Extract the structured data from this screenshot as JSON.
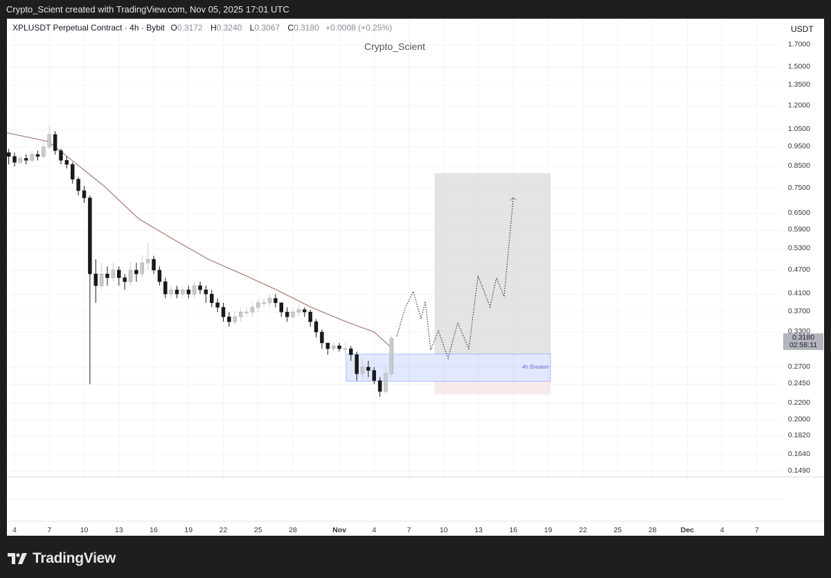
{
  "credit": "Crypto_Scient created with TradingView.com, Nov 05, 2025 17:01 UTC",
  "legend": {
    "symbol": "XPLUSDT Perpetual Contract · 4h · Bybit",
    "open_label": "O",
    "open": "0.3172",
    "high_label": "H",
    "high": "0.3240",
    "low_label": "L",
    "low": "0.3067",
    "close_label": "C",
    "close": "0.3180",
    "change": "+0.0008 (+0.25%)"
  },
  "watermark": "Crypto_Scient",
  "brand": "TradingView",
  "chart_data": {
    "type": "candlestick",
    "title": "XPLUSDT Perpetual Contract · 4h · Bybit",
    "yscale": "log",
    "ylabel": "USDT",
    "ylim": [
      0.149,
      1.7
    ],
    "grid": true,
    "y_ticks": [
      "1.7000",
      "1.5000",
      "1.3500",
      "1.2000",
      "1.0500",
      "0.9500",
      "0.8500",
      "0.7500",
      "0.6500",
      "0.5900",
      "0.5300",
      "0.4700",
      "0.4100",
      "0.3700",
      "0.3300",
      "0.2700",
      "0.2450",
      "0.2200",
      "0.2000",
      "0.1820",
      "0.1640",
      "0.1490"
    ],
    "x_ticks": [
      {
        "label": "4",
        "date": "2025-10-04"
      },
      {
        "label": "7",
        "date": "2025-10-07"
      },
      {
        "label": "10",
        "date": "2025-10-10"
      },
      {
        "label": "13",
        "date": "2025-10-13"
      },
      {
        "label": "16",
        "date": "2025-10-16"
      },
      {
        "label": "19",
        "date": "2025-10-19"
      },
      {
        "label": "22",
        "date": "2025-10-22"
      },
      {
        "label": "25",
        "date": "2025-10-25"
      },
      {
        "label": "28",
        "date": "2025-10-28"
      },
      {
        "label": "Nov",
        "date": "2025-11-01",
        "major": true
      },
      {
        "label": "4",
        "date": "2025-11-04"
      },
      {
        "label": "7",
        "date": "2025-11-07"
      },
      {
        "label": "10",
        "date": "2025-11-10"
      },
      {
        "label": "13",
        "date": "2025-11-13"
      },
      {
        "label": "16",
        "date": "2025-11-16"
      },
      {
        "label": "19",
        "date": "2025-11-19"
      },
      {
        "label": "22",
        "date": "2025-11-22"
      },
      {
        "label": "25",
        "date": "2025-11-25"
      },
      {
        "label": "28",
        "date": "2025-11-28"
      },
      {
        "label": "Dec",
        "date": "2025-12-01",
        "major": true
      },
      {
        "label": "4",
        "date": "2025-12-04"
      },
      {
        "label": "7",
        "date": "2025-12-07"
      }
    ],
    "candles": [
      [
        "2025-10-03T12",
        0.92,
        0.94,
        0.86,
        0.9
      ],
      [
        "2025-10-04T00",
        0.9,
        0.92,
        0.85,
        0.87
      ],
      [
        "2025-10-04T12",
        0.87,
        0.91,
        0.86,
        0.89
      ],
      [
        "2025-10-05T00",
        0.89,
        0.91,
        0.86,
        0.88
      ],
      [
        "2025-10-05T12",
        0.88,
        0.93,
        0.87,
        0.91
      ],
      [
        "2025-10-06T00",
        0.91,
        0.93,
        0.88,
        0.9
      ],
      [
        "2025-10-06T12",
        0.9,
        0.98,
        0.89,
        0.95
      ],
      [
        "2025-10-07T00",
        0.95,
        1.07,
        0.94,
        1.02
      ],
      [
        "2025-10-07T12",
        1.02,
        1.04,
        0.91,
        0.93
      ],
      [
        "2025-10-08T00",
        0.93,
        0.94,
        0.86,
        0.88
      ],
      [
        "2025-10-08T12",
        0.88,
        0.9,
        0.84,
        0.86
      ],
      [
        "2025-10-09T00",
        0.86,
        0.87,
        0.77,
        0.79
      ],
      [
        "2025-10-09T12",
        0.79,
        0.8,
        0.72,
        0.74
      ],
      [
        "2025-10-10T00",
        0.74,
        0.76,
        0.69,
        0.71
      ],
      [
        "2025-10-10T12",
        0.71,
        0.72,
        0.245,
        0.46
      ],
      [
        "2025-10-11T00",
        0.46,
        0.5,
        0.39,
        0.43
      ],
      [
        "2025-10-11T12",
        0.43,
        0.49,
        0.42,
        0.46
      ],
      [
        "2025-10-12T00",
        0.46,
        0.48,
        0.43,
        0.45
      ],
      [
        "2025-10-12T12",
        0.45,
        0.49,
        0.44,
        0.47
      ],
      [
        "2025-10-13T00",
        0.47,
        0.48,
        0.43,
        0.45
      ],
      [
        "2025-10-13T12",
        0.45,
        0.46,
        0.42,
        0.44
      ],
      [
        "2025-10-14T00",
        0.44,
        0.49,
        0.43,
        0.47
      ],
      [
        "2025-10-14T12",
        0.47,
        0.49,
        0.44,
        0.46
      ],
      [
        "2025-10-15T00",
        0.46,
        0.51,
        0.45,
        0.49
      ],
      [
        "2025-10-15T12",
        0.49,
        0.55,
        0.47,
        0.5
      ],
      [
        "2025-10-16T00",
        0.5,
        0.51,
        0.46,
        0.47
      ],
      [
        "2025-10-16T12",
        0.47,
        0.48,
        0.43,
        0.44
      ],
      [
        "2025-10-17T00",
        0.44,
        0.45,
        0.4,
        0.41
      ],
      [
        "2025-10-17T12",
        0.41,
        0.43,
        0.4,
        0.42
      ],
      [
        "2025-10-18T00",
        0.42,
        0.43,
        0.4,
        0.41
      ],
      [
        "2025-10-18T12",
        0.41,
        0.43,
        0.4,
        0.42
      ],
      [
        "2025-10-19T00",
        0.42,
        0.43,
        0.4,
        0.41
      ],
      [
        "2025-10-19T12",
        0.41,
        0.44,
        0.4,
        0.43
      ],
      [
        "2025-10-20T00",
        0.43,
        0.44,
        0.41,
        0.42
      ],
      [
        "2025-10-20T12",
        0.42,
        0.43,
        0.39,
        0.41
      ],
      [
        "2025-10-21T00",
        0.41,
        0.42,
        0.38,
        0.39
      ],
      [
        "2025-10-21T12",
        0.39,
        0.4,
        0.37,
        0.38
      ],
      [
        "2025-10-22T00",
        0.38,
        0.39,
        0.35,
        0.36
      ],
      [
        "2025-10-22T12",
        0.36,
        0.37,
        0.34,
        0.35
      ],
      [
        "2025-10-23T00",
        0.35,
        0.37,
        0.345,
        0.36
      ],
      [
        "2025-10-23T12",
        0.36,
        0.38,
        0.35,
        0.37
      ],
      [
        "2025-10-24T00",
        0.37,
        0.38,
        0.36,
        0.37
      ],
      [
        "2025-10-24T12",
        0.37,
        0.39,
        0.36,
        0.38
      ],
      [
        "2025-10-25T00",
        0.38,
        0.4,
        0.37,
        0.39
      ],
      [
        "2025-10-25T12",
        0.39,
        0.4,
        0.38,
        0.39
      ],
      [
        "2025-10-26T00",
        0.39,
        0.41,
        0.38,
        0.4
      ],
      [
        "2025-10-26T12",
        0.4,
        0.41,
        0.38,
        0.39
      ],
      [
        "2025-10-27T00",
        0.39,
        0.39,
        0.36,
        0.37
      ],
      [
        "2025-10-27T12",
        0.37,
        0.38,
        0.35,
        0.36
      ],
      [
        "2025-10-28T00",
        0.36,
        0.38,
        0.355,
        0.37
      ],
      [
        "2025-10-28T12",
        0.37,
        0.385,
        0.36,
        0.375
      ],
      [
        "2025-10-29T00",
        0.375,
        0.38,
        0.36,
        0.37
      ],
      [
        "2025-10-29T12",
        0.37,
        0.375,
        0.34,
        0.35
      ],
      [
        "2025-10-30T00",
        0.35,
        0.355,
        0.32,
        0.33
      ],
      [
        "2025-10-30T12",
        0.33,
        0.335,
        0.3,
        0.31
      ],
      [
        "2025-10-31T00",
        0.31,
        0.31,
        0.29,
        0.3
      ],
      [
        "2025-10-31T12",
        0.3,
        0.31,
        0.295,
        0.305
      ],
      [
        "2025-11-01T00",
        0.305,
        0.31,
        0.295,
        0.3
      ],
      [
        "2025-11-01T12",
        0.3,
        0.31,
        0.29,
        0.3
      ],
      [
        "2025-11-02T00",
        0.3,
        0.305,
        0.28,
        0.29
      ],
      [
        "2025-11-02T12",
        0.29,
        0.295,
        0.25,
        0.26
      ],
      [
        "2025-11-03T00",
        0.26,
        0.285,
        0.255,
        0.27
      ],
      [
        "2025-11-03T12",
        0.27,
        0.28,
        0.255,
        0.265
      ],
      [
        "2025-11-04T00",
        0.265,
        0.27,
        0.245,
        0.25
      ],
      [
        "2025-11-04T12",
        0.25,
        0.255,
        0.228,
        0.235
      ],
      [
        "2025-11-05T00",
        0.235,
        0.27,
        0.232,
        0.26
      ],
      [
        "2025-11-05T12",
        0.26,
        0.324,
        0.255,
        0.318
      ]
    ],
    "moving_average": [
      [
        "2025-10-03T08",
        1.03
      ],
      [
        "2025-10-06T22",
        0.98
      ],
      [
        "2025-10-11T17",
        0.76
      ],
      [
        "2025-10-14T17",
        0.63
      ],
      [
        "2025-10-17T17",
        0.56
      ],
      [
        "2025-10-20T17",
        0.5
      ],
      [
        "2025-10-23T14",
        0.46
      ],
      [
        "2025-10-26T14",
        0.42
      ],
      [
        "2025-10-29T14",
        0.38
      ],
      [
        "2025-11-01T14",
        0.35
      ],
      [
        "2025-11-04T00",
        0.33
      ],
      [
        "2025-11-05T14",
        0.3
      ]
    ],
    "projection_path": [
      [
        "2025-11-05T23",
        0.322
      ],
      [
        "2025-11-06T16",
        0.378
      ],
      [
        "2025-11-07T09",
        0.416
      ],
      [
        "2025-11-08T01",
        0.356
      ],
      [
        "2025-11-08T10",
        0.393
      ],
      [
        "2025-11-08T21",
        0.298
      ],
      [
        "2025-11-09T13",
        0.332
      ],
      [
        "2025-11-10T09",
        0.284
      ],
      [
        "2025-11-11T05",
        0.348
      ],
      [
        "2025-11-12T04",
        0.3
      ],
      [
        "2025-11-12T23",
        0.455
      ],
      [
        "2025-11-14T00",
        0.381
      ],
      [
        "2025-11-14T13",
        0.45
      ],
      [
        "2025-11-15T05",
        0.404
      ],
      [
        "2025-11-16T00",
        0.712
      ]
    ],
    "breaker_zone": {
      "label": "4h Breaker",
      "from": "2025-11-01T14",
      "to": "2025-11-19T05",
      "top": 0.291,
      "bottom": 0.249,
      "color": "#6c8cff"
    },
    "position": {
      "from": "2025-11-09T05",
      "to": "2025-11-19T05",
      "target": 0.818,
      "entry": 0.291,
      "stop": 0.231
    },
    "last_price": {
      "value": "0.3180",
      "countdown": "02:58:11"
    },
    "colors": {
      "up": "#c9cbd1",
      "down": "#1a1a1a",
      "ma": "#a87a72"
    }
  }
}
